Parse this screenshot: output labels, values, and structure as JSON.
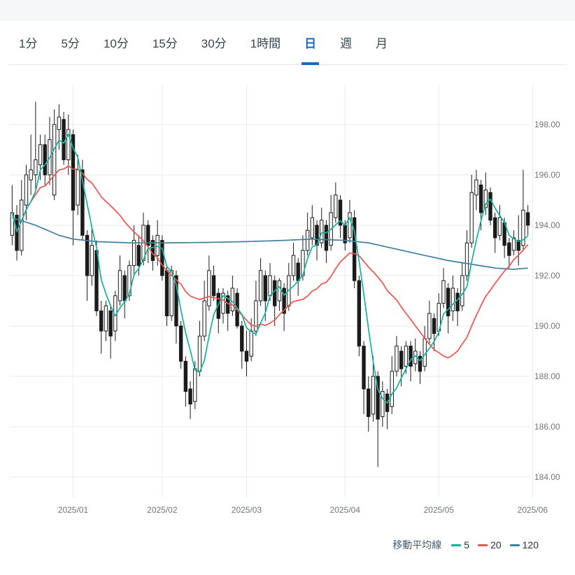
{
  "tabs": {
    "items": [
      {
        "label": "1分",
        "active": false
      },
      {
        "label": "5分",
        "active": false
      },
      {
        "label": "10分",
        "active": false
      },
      {
        "label": "15分",
        "active": false
      },
      {
        "label": "30分",
        "active": false
      },
      {
        "label": "1時間",
        "active": false
      },
      {
        "label": "日",
        "active": true
      },
      {
        "label": "週",
        "active": false
      },
      {
        "label": "月",
        "active": false
      }
    ]
  },
  "chart_data": {
    "type": "candlestick",
    "title": "",
    "ylim": [
      183.2,
      199.6
    ],
    "grid": true,
    "legend_position": "bottom-right",
    "x_count": 111,
    "y_ticks": [
      {
        "value": 198,
        "label": "198.00"
      },
      {
        "value": 196,
        "label": "196.00"
      },
      {
        "value": 194,
        "label": "194.00"
      },
      {
        "value": 192,
        "label": "192.00"
      },
      {
        "value": 190,
        "label": "190.00"
      },
      {
        "value": 188,
        "label": "188.00"
      },
      {
        "value": 186,
        "label": "186.00"
      },
      {
        "value": 184,
        "label": "184.00"
      }
    ],
    "x_labels": [
      {
        "index": 13,
        "label": "2025/01"
      },
      {
        "index": 32,
        "label": "2025/02"
      },
      {
        "index": 50,
        "label": "2025/03"
      },
      {
        "index": 71,
        "label": "2025/04"
      },
      {
        "index": 91,
        "label": "2025/05"
      },
      {
        "index": 111,
        "label": "2025/06"
      }
    ],
    "candle_colors": {
      "up_fill": "#ffffff",
      "down_fill": "#1b1b1b",
      "stroke": "#1b1b1b"
    },
    "candles": [
      [
        193.6,
        195.6,
        193.2,
        194.5
      ],
      [
        194.4,
        194.8,
        192.6,
        193.0
      ],
      [
        193.0,
        195.8,
        192.8,
        195.0
      ],
      [
        194.8,
        196.4,
        194.2,
        196.0
      ],
      [
        195.8,
        197.6,
        195.2,
        196.2
      ],
      [
        196.0,
        198.9,
        195.4,
        196.6
      ],
      [
        196.4,
        197.6,
        195.8,
        197.2
      ],
      [
        197.2,
        197.6,
        195.6,
        196.0
      ],
      [
        196.0,
        198.3,
        195.6,
        197.4
      ],
      [
        195.2,
        198.6,
        195.0,
        198.0
      ],
      [
        197.8,
        198.8,
        197.0,
        198.3
      ],
      [
        198.2,
        198.5,
        196.4,
        196.6
      ],
      [
        196.6,
        198.4,
        196.0,
        197.8
      ],
      [
        197.6,
        197.8,
        193.2,
        194.6
      ],
      [
        194.8,
        196.8,
        194.4,
        196.2
      ],
      [
        196.2,
        196.6,
        193.4,
        193.6
      ],
      [
        193.6,
        193.8,
        191.0,
        192.0
      ],
      [
        192.0,
        194.0,
        191.6,
        193.2
      ],
      [
        193.0,
        193.4,
        190.4,
        190.6
      ],
      [
        190.6,
        191.0,
        188.9,
        189.8
      ],
      [
        189.8,
        191.0,
        189.4,
        190.8
      ],
      [
        190.6,
        190.8,
        188.7,
        189.6
      ],
      [
        189.8,
        191.4,
        189.4,
        191.2
      ],
      [
        191.0,
        192.8,
        190.8,
        192.2
      ],
      [
        192.0,
        192.2,
        190.3,
        191.0
      ],
      [
        191.2,
        192.6,
        191.0,
        192.4
      ],
      [
        192.4,
        194.0,
        192.0,
        193.4
      ],
      [
        193.2,
        193.6,
        192.0,
        192.4
      ],
      [
        192.6,
        194.5,
        192.4,
        194.0
      ],
      [
        194.0,
        194.2,
        192.5,
        193.2
      ],
      [
        193.4,
        193.6,
        192.2,
        192.6
      ],
      [
        192.8,
        194.2,
        192.4,
        193.6
      ],
      [
        193.4,
        193.6,
        191.8,
        192.0
      ],
      [
        192.2,
        192.4,
        190.0,
        190.4
      ],
      [
        190.4,
        192.4,
        190.2,
        192.2
      ],
      [
        192.0,
        192.2,
        189.3,
        190.0
      ],
      [
        190.0,
        190.2,
        188.3,
        188.6
      ],
      [
        188.6,
        188.8,
        186.8,
        187.4
      ],
      [
        187.5,
        187.8,
        186.3,
        186.9
      ],
      [
        187.0,
        188.6,
        186.7,
        188.3
      ],
      [
        188.2,
        190.2,
        188.0,
        189.6
      ],
      [
        189.6,
        191.8,
        189.4,
        191.0
      ],
      [
        190.8,
        192.8,
        190.6,
        192.2
      ],
      [
        192.0,
        192.4,
        191.0,
        191.2
      ],
      [
        191.3,
        191.5,
        189.7,
        190.3
      ],
      [
        190.5,
        191.5,
        190.1,
        191.3
      ],
      [
        191.2,
        191.4,
        189.8,
        190.5
      ],
      [
        190.6,
        192.0,
        190.4,
        191.5
      ],
      [
        191.3,
        191.5,
        189.9,
        190.0
      ],
      [
        190.0,
        190.2,
        188.3,
        189.0
      ],
      [
        189.0,
        189.8,
        188.0,
        188.6
      ],
      [
        188.8,
        190.3,
        188.6,
        189.8
      ],
      [
        189.8,
        191.8,
        189.6,
        191.0
      ],
      [
        191.0,
        192.7,
        190.8,
        192.2
      ],
      [
        192.0,
        192.2,
        190.2,
        191.0
      ],
      [
        191.2,
        192.5,
        191.0,
        192.0
      ],
      [
        191.8,
        192.0,
        190.0,
        190.8
      ],
      [
        191.0,
        191.9,
        190.6,
        191.8
      ],
      [
        191.5,
        191.7,
        189.8,
        190.5
      ],
      [
        190.8,
        192.5,
        190.6,
        192.0
      ],
      [
        192.0,
        193.3,
        191.8,
        192.8
      ],
      [
        192.5,
        192.7,
        191.2,
        191.8
      ],
      [
        192.0,
        193.6,
        191.8,
        193.0
      ],
      [
        193.0,
        194.5,
        192.8,
        193.8
      ],
      [
        193.5,
        194.8,
        193.2,
        194.3
      ],
      [
        194.0,
        194.2,
        192.6,
        193.2
      ],
      [
        193.3,
        194.7,
        193.1,
        194.2
      ],
      [
        194.0,
        194.2,
        192.5,
        193.0
      ],
      [
        193.2,
        195.2,
        193.0,
        194.5
      ],
      [
        194.3,
        195.7,
        194.1,
        195.2
      ],
      [
        195.0,
        195.2,
        193.5,
        194.0
      ],
      [
        194.0,
        194.2,
        193.0,
        193.3
      ],
      [
        193.5,
        195.0,
        193.3,
        194.5
      ],
      [
        194.3,
        194.6,
        191.5,
        191.8
      ],
      [
        191.8,
        192.0,
        188.8,
        189.2
      ],
      [
        189.2,
        189.4,
        186.5,
        187.5
      ],
      [
        187.5,
        188.0,
        185.8,
        186.4
      ],
      [
        186.5,
        188.8,
        186.2,
        188.0
      ],
      [
        188.0,
        188.2,
        184.4,
        186.3
      ],
      [
        186.4,
        187.8,
        186.0,
        187.4
      ],
      [
        187.3,
        187.5,
        185.9,
        186.6
      ],
      [
        186.8,
        188.8,
        186.5,
        188.2
      ],
      [
        188.2,
        189.6,
        188.0,
        189.2
      ],
      [
        189.0,
        189.2,
        187.6,
        188.3
      ],
      [
        188.4,
        189.4,
        188.1,
        189.2
      ],
      [
        189.2,
        189.4,
        187.8,
        188.4
      ],
      [
        188.5,
        189.5,
        188.2,
        189.0
      ],
      [
        188.8,
        189.0,
        187.7,
        188.2
      ],
      [
        188.4,
        190.0,
        188.2,
        189.5
      ],
      [
        189.5,
        191.0,
        189.3,
        190.5
      ],
      [
        190.3,
        190.5,
        189.0,
        189.7
      ],
      [
        189.8,
        191.3,
        189.6,
        190.9
      ],
      [
        190.9,
        192.3,
        190.7,
        191.8
      ],
      [
        191.5,
        191.7,
        189.7,
        190.4
      ],
      [
        190.6,
        192.0,
        190.2,
        191.5
      ],
      [
        191.3,
        191.5,
        190.0,
        190.6
      ],
      [
        190.8,
        192.5,
        190.6,
        192.0
      ],
      [
        192.0,
        193.8,
        191.8,
        193.3
      ],
      [
        193.3,
        196.0,
        193.1,
        195.3
      ],
      [
        195.2,
        196.2,
        194.6,
        195.8
      ],
      [
        195.6,
        195.8,
        193.8,
        194.5
      ],
      [
        194.7,
        196.1,
        194.4,
        195.4
      ],
      [
        195.3,
        195.5,
        194.0,
        194.2
      ],
      [
        194.3,
        194.5,
        192.9,
        193.5
      ],
      [
        193.6,
        194.8,
        193.4,
        194.3
      ],
      [
        194.1,
        194.3,
        192.7,
        193.2
      ],
      [
        193.3,
        193.5,
        192.3,
        192.8
      ],
      [
        193.0,
        193.8,
        192.8,
        193.5
      ],
      [
        193.4,
        194.4,
        192.4,
        193.0
      ],
      [
        193.2,
        196.2,
        193.0,
        194.6
      ],
      [
        194.5,
        194.8,
        193.6,
        194.0
      ]
    ],
    "moving_averages": [
      {
        "label": "5",
        "period": 5,
        "color": "#15b29a"
      },
      {
        "label": "20",
        "period": 20,
        "color": "#ef5350"
      },
      {
        "label": "120",
        "period": 120,
        "color": "#3f7f9e",
        "points": [
          [
            0,
            194.3
          ],
          [
            5,
            194.0
          ],
          [
            10,
            193.6
          ],
          [
            13,
            193.45
          ],
          [
            18,
            193.35
          ],
          [
            25,
            193.3
          ],
          [
            33,
            193.3
          ],
          [
            42,
            193.32
          ],
          [
            50,
            193.35
          ],
          [
            58,
            193.4
          ],
          [
            64,
            193.45
          ],
          [
            71,
            193.4
          ],
          [
            76,
            193.3
          ],
          [
            82,
            193.05
          ],
          [
            88,
            192.8
          ],
          [
            93,
            192.6
          ],
          [
            98,
            192.45
          ],
          [
            103,
            192.3
          ],
          [
            107,
            192.25
          ],
          [
            110,
            192.3
          ]
        ]
      }
    ],
    "legend_title": "移動平均線"
  }
}
